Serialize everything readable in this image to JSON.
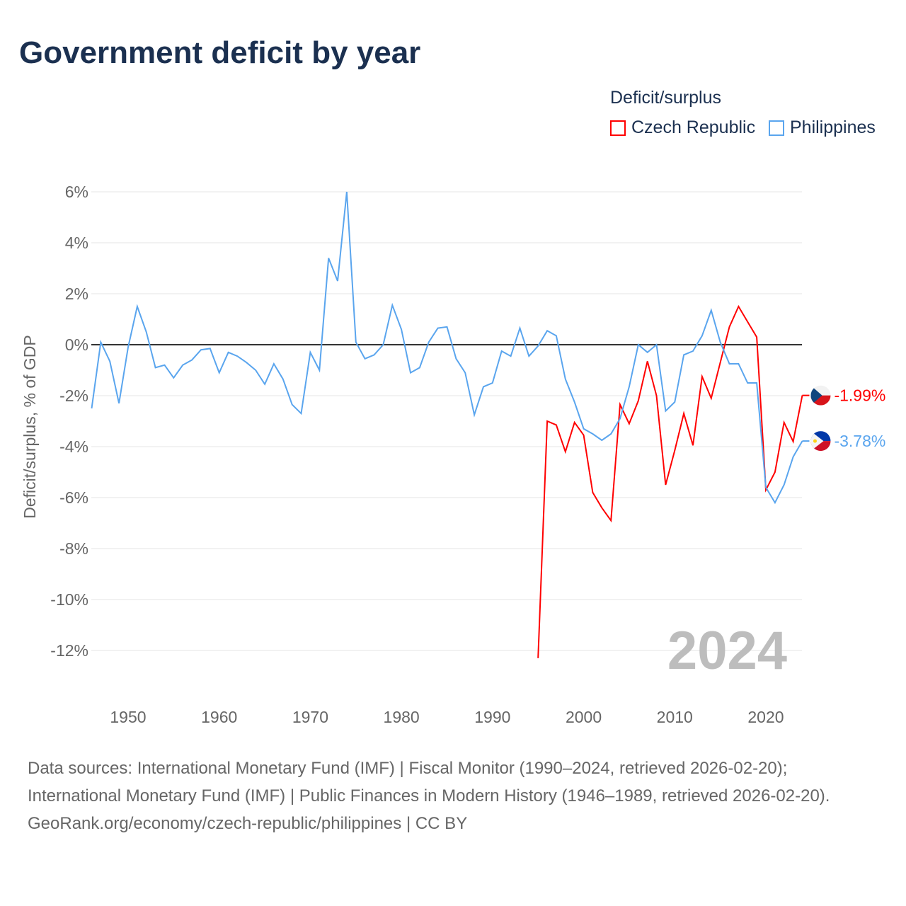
{
  "title": "Government deficit by year",
  "legend": {
    "title": "Deficit/surplus",
    "items": [
      {
        "label": "Czech Republic",
        "color": "#ff0000"
      },
      {
        "label": "Philippines",
        "color": "#5aa5ee"
      }
    ]
  },
  "chart_data": {
    "type": "line",
    "title": "Government deficit by year",
    "xlabel": "",
    "ylabel": "Deficit/surplus, % of GDP",
    "xlim": [
      1946,
      2024
    ],
    "ylim": [
      -13.2,
      6.5
    ],
    "x_ticks": [
      1950,
      1960,
      1970,
      1980,
      1990,
      2000,
      2010,
      2020
    ],
    "y_ticks": [
      6,
      4,
      2,
      0,
      -2,
      -4,
      -6,
      -8,
      -10,
      -12
    ],
    "y_tick_labels": [
      "6%",
      "4%",
      "2%",
      "0%",
      "-2%",
      "-4%",
      "-6%",
      "-8%",
      "-10%",
      "-12%"
    ],
    "grid": true,
    "year_watermark": "2024",
    "series": [
      {
        "name": "Czech Republic",
        "color": "#ff0000",
        "end_label": "-1.99%",
        "start_year": 1995,
        "values": [
          -12.3,
          -3.0,
          -3.15,
          -4.2,
          -3.05,
          -3.55,
          -5.8,
          -6.4,
          -6.9,
          -2.35,
          -3.1,
          -2.2,
          -0.65,
          -2.0,
          -5.5,
          -4.15,
          -2.7,
          -3.95,
          -1.25,
          -2.1,
          -0.7,
          0.7,
          1.5,
          0.9,
          0.3,
          -5.7,
          -5.0,
          -3.05,
          -3.8,
          -1.99
        ]
      },
      {
        "name": "Philippines",
        "color": "#5aa5ee",
        "end_label": "-3.78%",
        "start_year": 1946,
        "values": [
          -2.5,
          0.1,
          -0.65,
          -2.3,
          -0.1,
          1.5,
          0.5,
          -0.9,
          -0.8,
          -1.3,
          -0.8,
          -0.6,
          -0.2,
          -0.15,
          -1.1,
          -0.3,
          -0.45,
          -0.7,
          -1.0,
          -1.55,
          -0.75,
          -1.35,
          -2.35,
          -2.7,
          -0.3,
          -1.0,
          3.4,
          2.5,
          6.0,
          0.1,
          -0.55,
          -0.4,
          0,
          1.55,
          0.6,
          -1.1,
          -0.9,
          0.1,
          0.65,
          0.7,
          -0.55,
          -1.1,
          -2.75,
          -1.65,
          -1.5,
          -0.25,
          -0.45,
          0.65,
          -0.45,
          -0.05,
          0.55,
          0.35,
          -1.35,
          -2.25,
          -3.3,
          -3.5,
          -3.75,
          -3.5,
          -2.9,
          -1.65,
          0,
          -0.3,
          0,
          -2.6,
          -2.25,
          -0.4,
          -0.25,
          0.35,
          1.35,
          0.1,
          -0.75,
          -0.75,
          -1.5,
          -1.5,
          -5.6,
          -6.2,
          -5.5,
          -4.4,
          -3.78
        ]
      }
    ]
  },
  "sources": {
    "line1": "Data sources: International Monetary Fund (IMF) | Fiscal Monitor (1990–2024, retrieved 2026-02-20); International Monetary Fund (IMF) | Public Finances in Modern History (1946–1989, retrieved 2026-02-20).",
    "line2": "GeoRank.org/economy/czech-republic/philippines | CC BY"
  }
}
